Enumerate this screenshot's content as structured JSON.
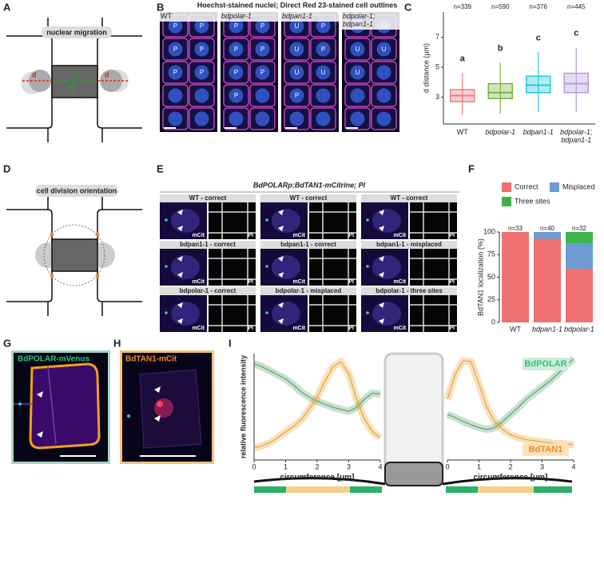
{
  "panels": {
    "letters": [
      "A",
      "B",
      "C",
      "D",
      "E",
      "F",
      "G",
      "H",
      "I"
    ]
  },
  "panel_a": {
    "label": "nuclear migration",
    "d_left": "d",
    "d_right": "d",
    "w": "w",
    "l": "l"
  },
  "panel_b": {
    "title": "Hoechst-stained nuclei; Direct Red 23-stained cell outlines",
    "images": [
      {
        "name": "WT",
        "nuclei": [
          "P",
          "P",
          "P",
          "P",
          "P",
          "P"
        ]
      },
      {
        "name": "bdpolar-1",
        "nuclei": [
          "P",
          "P",
          "P",
          "P",
          "P",
          "P",
          "P"
        ]
      },
      {
        "name": "bdpan1-1",
        "nuclei": [
          "U",
          "P",
          "U",
          "P",
          "U",
          "U",
          "P"
        ]
      },
      {
        "name": "bdpolar-1; bdpan1-1",
        "nuclei": [
          "U",
          "U",
          "U",
          "U",
          "U"
        ]
      }
    ]
  },
  "panel_d": {
    "label": "cell division orientation"
  },
  "panel_e": {
    "title": "BdPOLARp:BdTAN1-mCitrine; PI",
    "tiles": [
      "WT - correct",
      "WT - correct",
      "WT - correct",
      "bdpan1-1 - correct",
      "bdpan1-1 - correct",
      "bdpan1-1 - misplaced",
      "bdpolar-1 - correct",
      "bdpolar-1 - misplaced",
      "bdpolar-1 - three sites"
    ],
    "channel_left": "mCit",
    "channel_right": "PI"
  },
  "panel_g": {
    "label": "BdPOLAR-mVenus"
  },
  "panel_h": {
    "label": "BdTAN1-mCit"
  },
  "chart_data": [
    {
      "type": "box",
      "ylabel": "d distance (μm)",
      "categories": [
        "WT",
        "bdpolar-1",
        "bdpan1-1",
        "bdpolar-1; bdpan1-1"
      ],
      "colors": [
        "#f07a7a",
        "#7cb342",
        "#26c6da",
        "#b39ddb"
      ],
      "n_labels": [
        "n=339",
        "n=590",
        "n=376",
        "n=445"
      ],
      "letters": [
        "a",
        "b",
        "c",
        "c"
      ],
      "boxes": [
        {
          "min": 1.8,
          "q1": 2.7,
          "median": 3.1,
          "q3": 3.5,
          "max": 4.6
        },
        {
          "min": 1.9,
          "q1": 2.9,
          "median": 3.3,
          "q3": 3.9,
          "max": 5.3
        },
        {
          "min": 2.0,
          "q1": 3.3,
          "median": 3.8,
          "q3": 4.4,
          "max": 6.0
        },
        {
          "min": 2.0,
          "q1": 3.3,
          "median": 3.9,
          "q3": 4.6,
          "max": 6.3
        }
      ],
      "ylim": [
        1.2,
        8.7
      ],
      "yticks": [
        3,
        5,
        7
      ]
    },
    {
      "type": "bar",
      "stacked": true,
      "ylabel": "BdTAN1 localization (%)",
      "categories": [
        "WT",
        "bdpan1-1",
        "bdpolar-1"
      ],
      "n_labels": [
        "n=33",
        "n=40",
        "n=32"
      ],
      "series": [
        {
          "name": "Correct",
          "color": "#f07070",
          "values": [
            100,
            92.5,
            59.4
          ]
        },
        {
          "name": "Misplaced",
          "color": "#6b9bd1",
          "values": [
            0,
            7.5,
            28.1
          ]
        },
        {
          "name": "Three sites",
          "color": "#3cb44b",
          "values": [
            0,
            0,
            12.5
          ]
        }
      ],
      "ylim": [
        0,
        100
      ],
      "yticks": [
        0,
        25,
        50,
        75,
        100
      ]
    },
    {
      "type": "line",
      "ylabel": "relative fluorescence intensity",
      "xlabel": "circumference [μm]",
      "x": [
        0,
        0.25,
        0.5,
        0.75,
        1,
        1.25,
        1.5,
        1.75,
        2,
        2.25,
        2.5,
        2.75,
        3,
        3.25,
        3.5,
        3.75,
        4
      ],
      "series": [
        {
          "color": "#4a9a5a",
          "values": [
            0.95,
            0.92,
            0.88,
            0.84,
            0.8,
            0.74,
            0.67,
            0.62,
            0.58,
            0.55,
            0.52,
            0.5,
            0.48,
            0.52,
            0.6,
            0.66,
            0.65
          ]
        },
        {
          "color": "#e89a20",
          "values": [
            0.12,
            0.14,
            0.17,
            0.22,
            0.28,
            0.33,
            0.4,
            0.5,
            0.62,
            0.78,
            0.92,
            0.97,
            0.85,
            0.6,
            0.4,
            0.28,
            0.22
          ]
        }
      ],
      "xlim": [
        0,
        4
      ],
      "xticks": [
        0,
        1,
        2,
        3,
        4
      ],
      "ylim": [
        0,
        1.05
      ]
    },
    {
      "type": "line",
      "xlabel": "circumference [μm]",
      "x": [
        0,
        0.25,
        0.5,
        0.75,
        1,
        1.25,
        1.5,
        1.75,
        2,
        2.25,
        2.5,
        2.75,
        3,
        3.25,
        3.5,
        3.75,
        4
      ],
      "series": [
        {
          "name": "BdPOLAR",
          "color": "#4a9a5a",
          "values": [
            0.45,
            0.42,
            0.38,
            0.35,
            0.32,
            0.3,
            0.32,
            0.38,
            0.45,
            0.52,
            0.6,
            0.66,
            0.72,
            0.78,
            0.85,
            0.93,
            1.0
          ]
        },
        {
          "name": "BdTAN1",
          "color": "#e89a20",
          "values": [
            0.6,
            0.85,
            0.98,
            0.97,
            0.75,
            0.52,
            0.38,
            0.3,
            0.25,
            0.22,
            0.2,
            0.19,
            0.18,
            0.17,
            0.16,
            0.16,
            0.15
          ]
        }
      ],
      "xlim": [
        0,
        4
      ],
      "xticks": [
        0,
        1,
        2,
        3,
        4
      ],
      "ylim": [
        0,
        1.05
      ]
    }
  ]
}
